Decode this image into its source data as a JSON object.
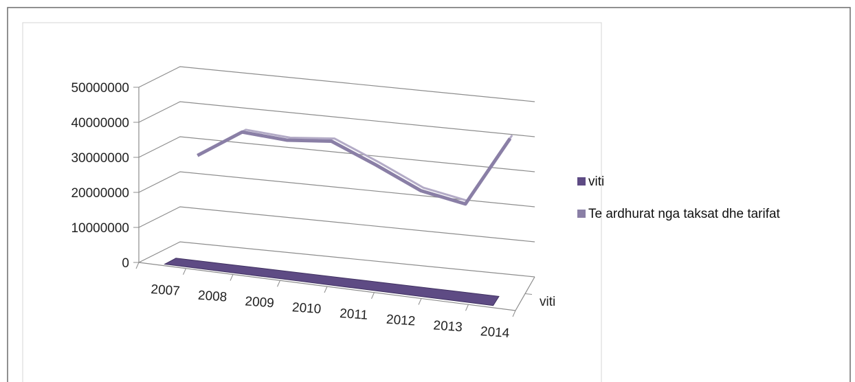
{
  "chart_data": {
    "type": "line",
    "style": "3d",
    "categories": [
      "2007",
      "2008",
      "2009",
      "2010",
      "2011",
      "2012",
      "2013",
      "2014"
    ],
    "series": [
      {
        "name": "viti",
        "color": "#5e4b84",
        "values": [
          2007,
          2008,
          2009,
          2010,
          2011,
          2012,
          2013,
          2014
        ]
      },
      {
        "name": "Te ardhurat nga taksat dhe tarifat",
        "color": "#8a7fa6",
        "values": [
          26000000,
          34000000,
          33000000,
          34000000,
          28500000,
          22500000,
          20000000,
          40000000
        ]
      }
    ],
    "y_ticks": [
      "0",
      "10000000",
      "20000000",
      "30000000",
      "40000000",
      "50000000"
    ],
    "ylim": [
      0,
      50000000
    ],
    "depth_label": "viti",
    "grid": true,
    "legend_position": "right"
  }
}
